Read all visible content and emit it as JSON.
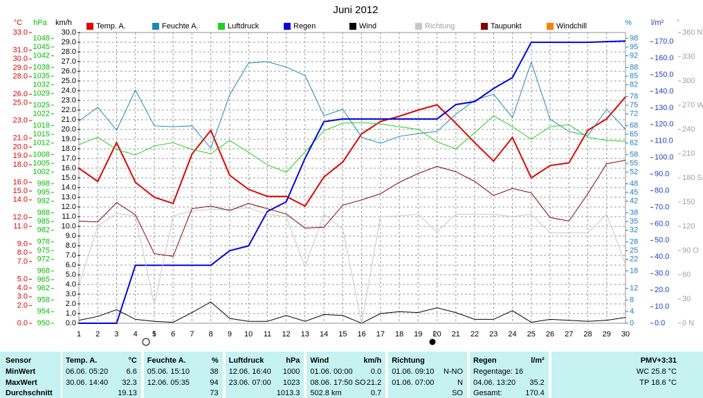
{
  "chart_data": {
    "type": "line",
    "title": "Juni 2012",
    "x": [
      1,
      2,
      3,
      4,
      5,
      6,
      7,
      8,
      9,
      10,
      11,
      12,
      13,
      14,
      15,
      16,
      17,
      18,
      19,
      20,
      21,
      22,
      23,
      24,
      25,
      26,
      27,
      28,
      29,
      30
    ],
    "xlim": [
      1,
      30
    ],
    "xticks": [
      1,
      2,
      3,
      4,
      5,
      6,
      7,
      8,
      9,
      10,
      11,
      12,
      13,
      14,
      15,
      16,
      17,
      18,
      19,
      20,
      21,
      22,
      23,
      24,
      25,
      26,
      27,
      28,
      29,
      30
    ],
    "grid": true,
    "axes": {
      "temp": {
        "label": "°C",
        "color": "#e00000",
        "lim": [
          0,
          33
        ],
        "ticks": [
          {
            "value": 33,
            "label": "33.0"
          },
          {
            "value": 31,
            "label": "31.0"
          },
          {
            "value": 30,
            "label": "30.0"
          },
          {
            "value": 29,
            "label": "29.0"
          },
          {
            "value": 28,
            "label": "28.0"
          },
          {
            "value": 26,
            "label": "26.0"
          },
          {
            "value": 25,
            "label": "25.0"
          },
          {
            "value": 23,
            "label": "23.0"
          },
          {
            "value": 21,
            "label": "21.0"
          },
          {
            "value": 20,
            "label": "20.0"
          },
          {
            "value": 19,
            "label": "19.0"
          },
          {
            "value": 18,
            "label": "18.0"
          },
          {
            "value": 16,
            "label": "16.0"
          },
          {
            "value": 15,
            "label": "15.0"
          },
          {
            "value": 14,
            "label": "14.0"
          },
          {
            "value": 12,
            "label": "12.0"
          },
          {
            "value": 11,
            "label": "11.0"
          },
          {
            "value": 9,
            "label": "9.0"
          },
          {
            "value": 8,
            "label": "8.0"
          },
          {
            "value": 7,
            "label": "7.0"
          },
          {
            "value": 5,
            "label": "5.0"
          },
          {
            "value": 4,
            "label": "4.0"
          },
          {
            "value": 3,
            "label": "3.0"
          },
          {
            "value": 2,
            "label": "2.0"
          },
          {
            "value": 0,
            "label": "0.0"
          }
        ]
      },
      "pressure": {
        "label": "hPa",
        "color": "#00c000",
        "lim": [
          950,
          1050
        ],
        "ticks": [
          950,
          954,
          958,
          962,
          965,
          968,
          972,
          975,
          978,
          982,
          985,
          988,
          992,
          995,
          998,
          1002,
          1005,
          1008,
          1012,
          1015,
          1018,
          1022,
          1025,
          1029,
          1032,
          1035,
          1038,
          1042,
          1045,
          1048
        ]
      },
      "wind": {
        "label": "km/h",
        "color": "#000000",
        "lim": [
          0,
          30
        ],
        "ticks": [
          {
            "value": 0,
            "label": "0.0"
          },
          {
            "value": 1,
            "label": "1.0"
          },
          {
            "value": 2,
            "label": "2.0"
          },
          {
            "value": 3,
            "label": "3.0"
          },
          {
            "value": 4,
            "label": "4.0"
          },
          {
            "value": 5,
            "label": "5.0"
          },
          {
            "value": 6,
            "label": "6.0"
          },
          {
            "value": 7,
            "label": "7.0"
          },
          {
            "value": 8,
            "label": "8.0"
          },
          {
            "value": 9,
            "label": "9.0"
          },
          {
            "value": 10,
            "label": "10.0"
          },
          {
            "value": 11,
            "label": "11.0"
          },
          {
            "value": 12,
            "label": "12.0"
          },
          {
            "value": 13,
            "label": "13.0"
          },
          {
            "value": 14,
            "label": "14.0"
          },
          {
            "value": 15,
            "label": "15.0"
          },
          {
            "value": 16,
            "label": "16.0"
          },
          {
            "value": 17,
            "label": "17.0"
          },
          {
            "value": 18,
            "label": "18.0"
          },
          {
            "value": 19,
            "label": "19.0"
          },
          {
            "value": 20,
            "label": "20.0"
          },
          {
            "value": 21,
            "label": "21.0"
          },
          {
            "value": 22,
            "label": "22.0"
          },
          {
            "value": 23,
            "label": "23.0"
          },
          {
            "value": 24,
            "label": "24.0"
          },
          {
            "value": 25,
            "label": "25.0"
          },
          {
            "value": 26,
            "label": "26.0"
          },
          {
            "value": 27,
            "label": "27.0"
          },
          {
            "value": 28,
            "label": "28.0"
          },
          {
            "value": 29,
            "label": "29.0"
          },
          {
            "value": 30,
            "label": "30.0"
          }
        ]
      },
      "humidity": {
        "label": "%",
        "color": "#2080c0",
        "lim": [
          0,
          100
        ],
        "ticks": [
          0,
          4,
          8,
          12,
          18,
          22,
          25,
          28,
          32,
          35,
          38,
          42,
          45,
          48,
          52,
          55,
          58,
          62,
          65,
          68,
          72,
          75,
          78,
          82,
          85,
          88,
          92,
          95,
          98
        ]
      },
      "rain": {
        "label": "l/m²",
        "color": "#2040c0",
        "lim": [
          0,
          175.5
        ],
        "ticks": [
          {
            "value": 0,
            "label": "0.0"
          },
          {
            "value": 10,
            "label": "10.0"
          },
          {
            "value": 20,
            "label": "20.0"
          },
          {
            "value": 30,
            "label": "30.0"
          },
          {
            "value": 40,
            "label": "40.0"
          },
          {
            "value": 50,
            "label": "50.0"
          },
          {
            "value": 60,
            "label": "60.0"
          },
          {
            "value": 70,
            "label": "70.0"
          },
          {
            "value": 80,
            "label": "80.0"
          },
          {
            "value": 90,
            "label": "90.0"
          },
          {
            "value": 100,
            "label": "100.0"
          },
          {
            "value": 110,
            "label": "110.0"
          },
          {
            "value": 120,
            "label": "120.0"
          },
          {
            "value": 130,
            "label": "130.0"
          },
          {
            "value": 140,
            "label": "140.0"
          },
          {
            "value": 150,
            "label": "150.0"
          },
          {
            "value": 160,
            "label": "160.0"
          },
          {
            "value": 170,
            "label": "170.0"
          }
        ]
      },
      "direction": {
        "label": "°",
        "color": "#a0a0a0",
        "lim": [
          0,
          360
        ],
        "ticks": [
          {
            "value": 0,
            "label": "0 N"
          },
          30,
          60,
          {
            "value": 90,
            "label": "90 O"
          },
          120,
          150,
          {
            "value": 180,
            "label": "180 S"
          },
          210,
          240,
          {
            "value": 270,
            "label": "270 W"
          },
          300,
          330,
          {
            "value": 360,
            "label": "360 N"
          }
        ]
      }
    },
    "series": [
      {
        "name": "Temp. A.",
        "color": "#e00000",
        "axis": "temp",
        "width": 2,
        "values": [
          17.6,
          16.1,
          20.5,
          16.0,
          14.3,
          13.6,
          19.2,
          21.9,
          16.8,
          15.2,
          14.4,
          14.4,
          13.3,
          16.6,
          18.3,
          21.5,
          22.9,
          23.5,
          24.2,
          24.8,
          22.7,
          20.5,
          18.4,
          21.1,
          16.5,
          17.9,
          18.2,
          21.9,
          23.2,
          25.7
        ]
      },
      {
        "name": "Feuchte A.",
        "color": "#1e8ab4",
        "axis": "humidity",
        "width": 1,
        "values": [
          69.5,
          74.3,
          66.4,
          80.2,
          67.9,
          67.6,
          67.9,
          60.2,
          78.6,
          89.5,
          90,
          88.1,
          85.2,
          71.4,
          73.6,
          64,
          61.9,
          64.3,
          65.2,
          66,
          71.9,
          76.7,
          78.8,
          70.7,
          89.8,
          70.2,
          66,
          64.5,
          73.6,
          66.7
        ]
      },
      {
        "name": "Luftdruck",
        "color": "#20d020",
        "axis": "pressure",
        "width": 1,
        "values": [
          1011.4,
          1014,
          1009.8,
          1007.9,
          1011,
          1012.1,
          1009.8,
          1008.3,
          1012.9,
          1008.8,
          1004.5,
          1001.9,
          1009,
          1016.2,
          1018.8,
          1019,
          1018.6,
          1017.6,
          1016.7,
          1012.4,
          1010,
          1015.5,
          1021.4,
          1017.6,
          1013.3,
          1017.6,
          1018.3,
          1014,
          1012.9,
          1012.6
        ]
      },
      {
        "name": "Regen",
        "color": "#0000e0",
        "axis": "rain",
        "width": 2,
        "values": [
          0,
          0,
          0,
          35,
          35,
          35,
          35,
          35,
          43.8,
          46.7,
          67.5,
          73.3,
          99.6,
          121.7,
          123.3,
          123.3,
          123.3,
          123.3,
          123.3,
          123.3,
          132,
          133.8,
          141.7,
          148.3,
          169.6,
          169.6,
          169.6,
          169.6,
          170,
          170.4
        ]
      },
      {
        "name": "Wind",
        "color": "#000000",
        "axis": "wind",
        "width": 1,
        "values": [
          0.3,
          0.7,
          1.4,
          0.4,
          0.2,
          0.1,
          1.1,
          2.2,
          0.5,
          0.2,
          0.2,
          0.8,
          0.2,
          0.9,
          0.8,
          0,
          1,
          1.2,
          1.1,
          1.6,
          1.1,
          0.4,
          0.4,
          1.3,
          0.1,
          0.4,
          0.3,
          0.2,
          0.3,
          0.6
        ]
      },
      {
        "name": "Richtung",
        "color": "#c8c8c8",
        "axis": "direction",
        "width": 1,
        "values": [
          47,
          120,
          136,
          133,
          23,
          133,
          139,
          141,
          141,
          143,
          135,
          132,
          70,
          135,
          117,
          0,
          132,
          133,
          135,
          113,
          135,
          135,
          135,
          132,
          135,
          112,
          112,
          112,
          135,
          73
        ]
      },
      {
        "name": "Taupunkt",
        "color": "#800000",
        "axis": "temp",
        "width": 1,
        "values": [
          11.6,
          11.5,
          13.7,
          12.3,
          7.9,
          7.6,
          13,
          13.3,
          12.8,
          13.6,
          13,
          12.4,
          10.8,
          10.9,
          13.4,
          14,
          14.7,
          16,
          17,
          17.8,
          17.2,
          16.1,
          14.5,
          15.3,
          14.8,
          12,
          11.6,
          14.7,
          18.1,
          18.5
        ]
      },
      {
        "name": "Windchill",
        "color": "#ff8000",
        "axis": "temp"
      }
    ]
  },
  "stats": {
    "row_labels": [
      "Sensor",
      "MinWert",
      "MaxWert",
      "Durchschnitt"
    ],
    "columns": [
      {
        "title": "Temp. A.",
        "unit": "°C",
        "rows": [
          {
            "left": "06.06. 05:20",
            "right": "6.6"
          },
          {
            "left": "30.06. 14:40",
            "right": "32.3"
          },
          {
            "right": "19.13"
          }
        ]
      },
      {
        "title": "Feuchte A.",
        "unit": "%",
        "rows": [
          {
            "left": "05.06. 15:10",
            "right": "38"
          },
          {
            "left": "12.06. 05:35",
            "right": "94"
          },
          {
            "right": "73"
          }
        ]
      },
      {
        "title": "Luftdruck",
        "unit": "hPa",
        "rows": [
          {
            "left": "12.06. 16:40",
            "right": "1000"
          },
          {
            "left": "23.06. 07:00",
            "right": "1023"
          },
          {
            "right": "1013.3"
          }
        ]
      },
      {
        "title": "Wind",
        "unit": "km/h",
        "rows": [
          {
            "left": "01.06. 00:00",
            "right": "0.0"
          },
          {
            "left": "08.06. 17:50 SO",
            "right": "21.2"
          },
          {
            "left": "502.8 km",
            "right": "0.7"
          }
        ]
      },
      {
        "title": "Richtung",
        "rows": [
          {
            "left": "01.06. 09:10",
            "right": "N-NO"
          },
          {
            "left": "01.06. 07:00",
            "right": "N"
          },
          {
            "right": "SO"
          }
        ]
      },
      {
        "title": "Regen",
        "unit": "l/m²",
        "rows": [
          {
            "left": "Regentage: 16"
          },
          {
            "left": "04.06. 13:20",
            "right": "35.2"
          },
          {
            "left": "Gesamt:",
            "right": "170.4"
          }
        ]
      }
    ],
    "summary": [
      "PMV+3:31",
      "WC 25.8 °C",
      "TP 18.6 °C"
    ]
  }
}
